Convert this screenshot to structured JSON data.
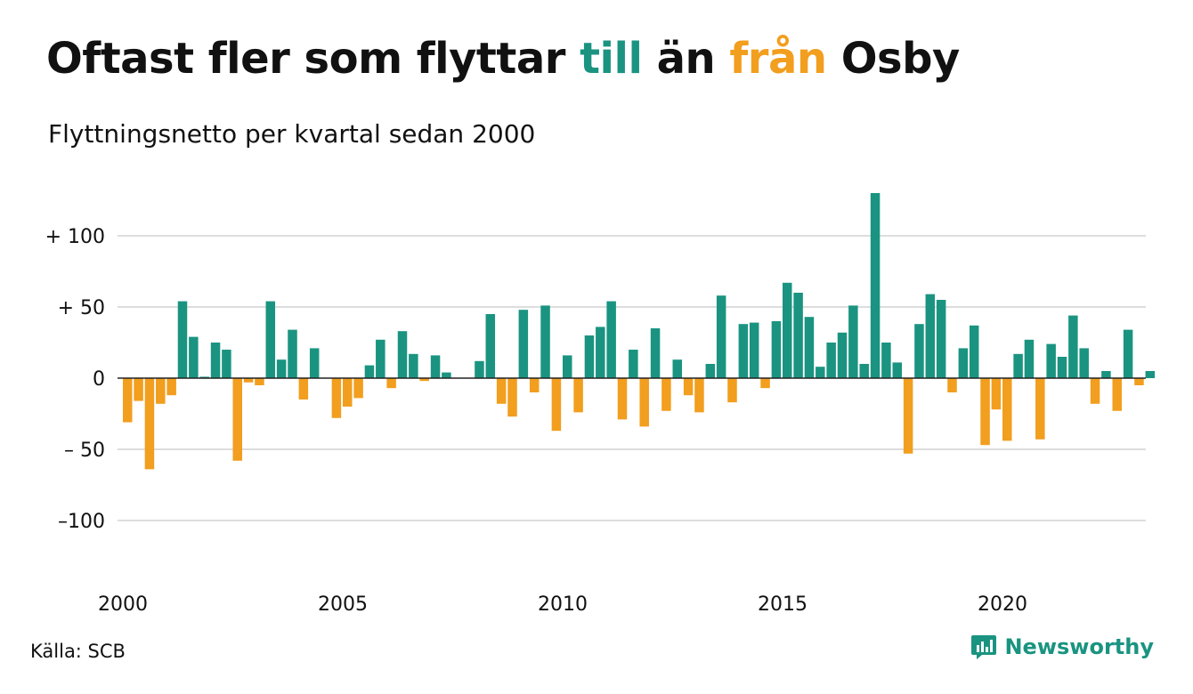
{
  "header": {
    "title_parts": [
      "Oftast fler som flyttar ",
      "till",
      " än ",
      "från",
      " Osby"
    ],
    "subtitle": "Flyttningsnetto per kvartal sedan 2000"
  },
  "footer": {
    "source": "Källa: SCB",
    "brand": "Newsworthy"
  },
  "colors": {
    "positive": "#1a9481",
    "negative": "#f29e1e",
    "grid": "#dddddd",
    "zero_line": "#222222",
    "text": "#111111"
  },
  "icons": {
    "brand_logo": "chart-bubble-icon"
  },
  "chart_data": {
    "type": "bar",
    "title": "Oftast fler som flyttar till än från Osby",
    "subtitle": "Flyttningsnetto per kvartal sedan 2000",
    "xlabel": "",
    "ylabel": "",
    "x_start": "2000 Q1",
    "x_ticks": [
      "2000",
      "2005",
      "2010",
      "2015",
      "2020"
    ],
    "y_ticks": [
      100,
      50,
      0,
      -50,
      -100
    ],
    "y_tick_labels": [
      "+ 100",
      "+  50",
      "0",
      "– 50",
      "–100"
    ],
    "ylim": [
      -110,
      135
    ],
    "grid": true,
    "values": [
      -31,
      -16,
      -64,
      -18,
      -12,
      54,
      29,
      1,
      25,
      20,
      -58,
      -3,
      -5,
      54,
      13,
      34,
      -15,
      21,
      0,
      -28,
      -20,
      -14,
      9,
      27,
      -7,
      33,
      17,
      -2,
      16,
      4,
      0,
      0,
      12,
      45,
      -18,
      -27,
      48,
      -10,
      51,
      -37,
      16,
      -24,
      30,
      36,
      54,
      -29,
      20,
      -34,
      35,
      -23,
      13,
      -12,
      -24,
      10,
      58,
      -17,
      38,
      39,
      -7,
      40,
      67,
      60,
      43,
      8,
      25,
      32,
      51,
      10,
      130,
      25,
      11,
      -53,
      38,
      59,
      55,
      -10,
      21,
      37,
      -47,
      -22,
      -44,
      17,
      27,
      -43,
      24,
      15,
      44,
      21,
      -18,
      5,
      -23,
      34,
      -5,
      5
    ]
  }
}
